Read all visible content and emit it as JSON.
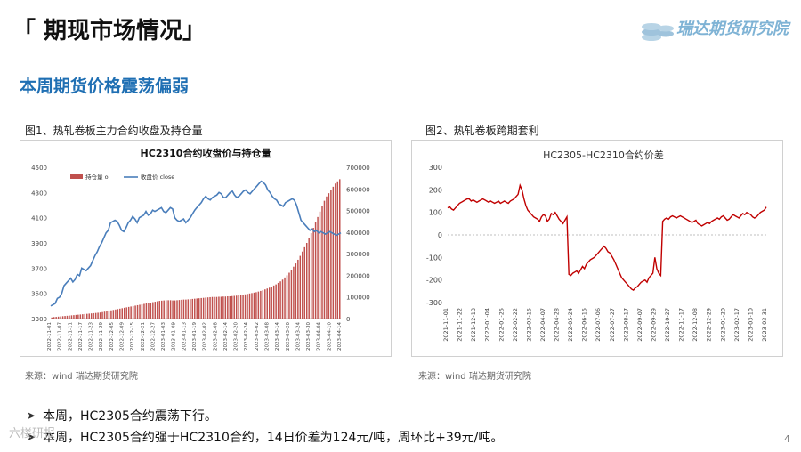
{
  "header": {
    "title": "「 期现市场情况」",
    "logo_text": "瑞达期货研究院"
  },
  "subtitle": "本周期货价格震荡偏弱",
  "fig1": {
    "caption": "图1、热轧卷板主力合约收盘及持仓量",
    "source": "来源：wind   瑞达期货研究院"
  },
  "fig2": {
    "caption": "图2、热轧卷板跨期套利",
    "source": "来源：wind   瑞达期货研究院"
  },
  "bullets": [
    "本周，HC2305合约震荡下行。",
    "本周，HC2305合约强于HC2310合约，14日价差为124元/吨，周环比+39元/吨。"
  ],
  "page_number": "4",
  "watermark": "六楼研报",
  "colors": {
    "title_blue": "#1f6fb3",
    "bar_red": "#c0504d",
    "line_blue": "#4a7ebb",
    "spread_red": "#c00000"
  },
  "chart_data": [
    {
      "type": "bar+line",
      "title": "HC2310合约收盘价与持仓量",
      "legend": [
        "持仓量 oi",
        "收盘价 close"
      ],
      "legend_position": "top-left",
      "ylim_left": [
        3300,
        4500
      ],
      "yticks_left": [
        3300,
        3500,
        3700,
        3900,
        4100,
        4300,
        4500
      ],
      "ylim_right": [
        0,
        700000
      ],
      "yticks_right": [
        0,
        100000,
        200000,
        300000,
        400000,
        500000,
        600000,
        700000
      ],
      "x_tick_labels": [
        "2022-11-01",
        "2022-11-07",
        "2022-11-11",
        "2022-11-17",
        "2022-11-23",
        "2022-11-29",
        "2022-12-05",
        "2022-12-09",
        "2022-12-15",
        "2022-12-21",
        "2022-12-27",
        "2023-01-03",
        "2023-01-09",
        "2023-01-13",
        "2023-01-19",
        "2023-02-02",
        "2023-02-08",
        "2023-02-14",
        "2023-02-20",
        "2023-02-24",
        "2023-03-02",
        "2023-03-08",
        "2023-03-14",
        "2023-03-20",
        "2023-03-24",
        "2023-03-30",
        "2023-04-04",
        "2023-04-10",
        "2023-04-14"
      ],
      "series": [
        {
          "name": "持仓量 oi",
          "kind": "bar",
          "axis": "right",
          "values": [
            5000,
            7000,
            8000,
            9000,
            10000,
            11000,
            12000,
            13000,
            14000,
            15000,
            16000,
            17000,
            18000,
            19000,
            20000,
            21000,
            22000,
            23000,
            24000,
            25000,
            26000,
            27000,
            28000,
            30000,
            32000,
            34000,
            36000,
            38000,
            40000,
            42000,
            44000,
            46000,
            48000,
            50000,
            52000,
            54000,
            56000,
            58000,
            60000,
            62000,
            64000,
            66000,
            68000,
            70000,
            72000,
            74000,
            76000,
            78000,
            80000,
            82000,
            83000,
            84000,
            85000,
            85000,
            85000,
            84000,
            84000,
            85000,
            86000,
            87000,
            88000,
            88000,
            89000,
            90000,
            91000,
            92000,
            93000,
            94000,
            95000,
            96000,
            97000,
            98000,
            99000,
            100000,
            100000,
            100000,
            101000,
            101000,
            102000,
            102000,
            103000,
            103000,
            104000,
            105000,
            106000,
            107000,
            108000,
            110000,
            112000,
            114000,
            116000,
            118000,
            120000,
            122000,
            125000,
            128000,
            131000,
            135000,
            139000,
            143000,
            148000,
            153000,
            158000,
            165000,
            172000,
            180000,
            190000,
            200000,
            212000,
            225000,
            240000,
            255000,
            272000,
            290000,
            310000,
            330000,
            350000,
            372000,
            395000,
            420000,
            445000,
            470000,
            495000,
            520000,
            545000,
            565000,
            580000,
            595000,
            610000,
            625000,
            635000,
            645000
          ]
        },
        {
          "name": "收盘价 close",
          "kind": "line",
          "axis": "left",
          "values": [
            3400,
            3410,
            3420,
            3460,
            3470,
            3500,
            3560,
            3580,
            3600,
            3620,
            3590,
            3610,
            3650,
            3640,
            3700,
            3690,
            3680,
            3700,
            3720,
            3760,
            3800,
            3830,
            3870,
            3900,
            3940,
            3980,
            4000,
            4060,
            4070,
            4080,
            4070,
            4040,
            4000,
            3990,
            4020,
            4060,
            4080,
            4110,
            4090,
            4060,
            4100,
            4110,
            4120,
            4150,
            4120,
            4130,
            4160,
            4150,
            4160,
            4170,
            4180,
            4150,
            4140,
            4160,
            4180,
            4170,
            4100,
            4080,
            4070,
            4080,
            4090,
            4060,
            4080,
            4100,
            4130,
            4160,
            4180,
            4200,
            4220,
            4250,
            4270,
            4250,
            4240,
            4260,
            4270,
            4280,
            4300,
            4290,
            4260,
            4260,
            4280,
            4300,
            4310,
            4280,
            4260,
            4270,
            4290,
            4310,
            4320,
            4300,
            4290,
            4310,
            4330,
            4350,
            4370,
            4390,
            4380,
            4360,
            4320,
            4300,
            4270,
            4250,
            4240,
            4210,
            4200,
            4190,
            4220,
            4230,
            4240,
            4250,
            4240,
            4200,
            4140,
            4080,
            4060,
            4040,
            4020,
            4000,
            4010,
            3990,
            4000,
            3980,
            3990,
            3980,
            3970,
            3980,
            3990,
            3980,
            3970,
            3960,
            3970,
            3980
          ]
        }
      ]
    },
    {
      "type": "line",
      "title": "HC2305-HC2310合约价差",
      "ylim": [
        -300,
        300
      ],
      "yticks": [
        -300,
        -200,
        -100,
        0,
        100,
        200,
        300
      ],
      "x_tick_labels": [
        "2021-11-01",
        "2021-11-22",
        "2021-12-13",
        "2022-01-04",
        "2022-01-25",
        "2022-02-22",
        "2022-03-15",
        "2022-04-07",
        "2022-04-28",
        "2022-05-24",
        "2022-06-15",
        "2022-07-06",
        "2022-07-27",
        "2022-08-17",
        "2022-09-07",
        "2022-09-29",
        "2022-10-27",
        "2022-11-17",
        "2022-12-08",
        "2022-12-29",
        "2023-01-20",
        "2023-02-17",
        "2023-03-10",
        "2023-03-31"
      ],
      "series": [
        {
          "name": "",
          "values": [
            120,
            125,
            115,
            110,
            120,
            130,
            140,
            145,
            150,
            155,
            160,
            160,
            150,
            155,
            150,
            145,
            150,
            155,
            160,
            155,
            150,
            145,
            150,
            145,
            140,
            145,
            150,
            140,
            145,
            150,
            145,
            140,
            150,
            155,
            160,
            170,
            180,
            220,
            200,
            160,
            130,
            110,
            100,
            90,
            80,
            75,
            70,
            60,
            80,
            90,
            85,
            60,
            70,
            95,
            90,
            100,
            85,
            70,
            60,
            50,
            65,
            80,
            -175,
            -180,
            -170,
            -165,
            -160,
            -170,
            -155,
            -140,
            -150,
            -130,
            -120,
            -110,
            -105,
            -100,
            -90,
            -80,
            -70,
            -60,
            -50,
            -60,
            -75,
            -80,
            -95,
            -110,
            -130,
            -150,
            -170,
            -190,
            -200,
            -210,
            -220,
            -230,
            -240,
            -245,
            -235,
            -230,
            -220,
            -210,
            -205,
            -200,
            -210,
            -190,
            -180,
            -170,
            -100,
            -150,
            -170,
            -180,
            60,
            70,
            75,
            70,
            80,
            85,
            80,
            75,
            80,
            85,
            80,
            75,
            70,
            65,
            60,
            55,
            60,
            65,
            50,
            45,
            40,
            45,
            50,
            55,
            50,
            60,
            65,
            70,
            75,
            70,
            80,
            85,
            75,
            65,
            70,
            80,
            90,
            85,
            80,
            75,
            85,
            95,
            90,
            100,
            95,
            90,
            80,
            75,
            80,
            90,
            100,
            105,
            110,
            124
          ]
        }
      ]
    }
  ]
}
